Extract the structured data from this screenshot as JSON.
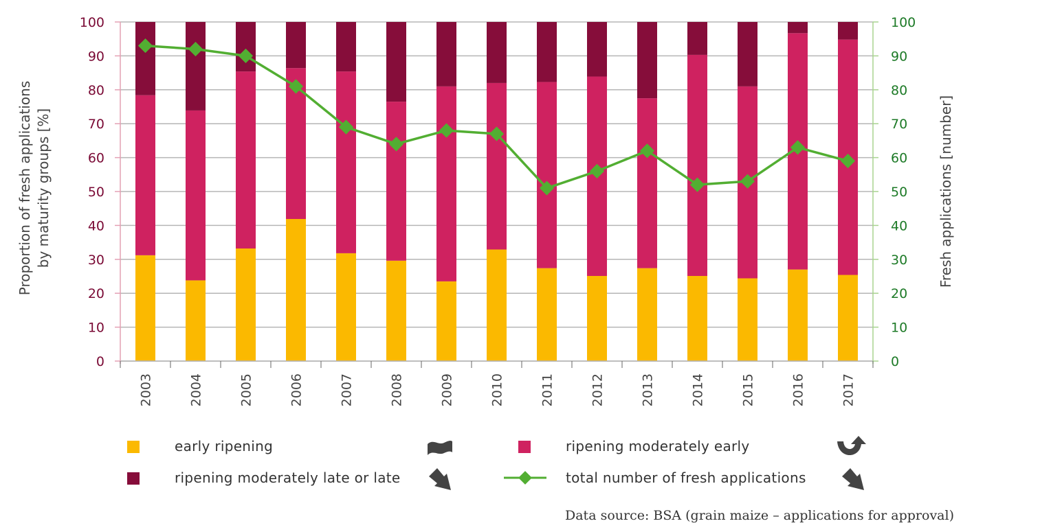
{
  "chart_data": {
    "type": "bar",
    "stacked": true,
    "title": "",
    "categories": [
      "2003",
      "2004",
      "2005",
      "2006",
      "2007",
      "2008",
      "2009",
      "2010",
      "2011",
      "2012",
      "2013",
      "2014",
      "2015",
      "2016",
      "2017"
    ],
    "series": [
      {
        "name": "early ripening",
        "color": "#fbb900",
        "axis": "left",
        "type": "bar",
        "values": [
          31.2,
          23.8,
          33.2,
          41.9,
          31.8,
          29.6,
          23.5,
          32.9,
          27.4,
          25.1,
          27.4,
          25.1,
          24.4,
          27.0,
          25.4
        ]
      },
      {
        "name": "ripening moderately early",
        "color": "#cf2260",
        "axis": "left",
        "type": "bar",
        "values": [
          47.2,
          50.1,
          52.2,
          44.5,
          53.6,
          46.9,
          57.5,
          49.1,
          54.9,
          58.8,
          50.1,
          65.2,
          56.6,
          69.7,
          69.4
        ]
      },
      {
        "name": "ripening moderately late or late",
        "color": "#860d3a",
        "axis": "left",
        "type": "bar",
        "values": [
          21.6,
          26.1,
          14.6,
          13.6,
          14.6,
          23.5,
          19.0,
          18.0,
          17.7,
          16.1,
          22.5,
          9.7,
          19.0,
          3.3,
          5.2
        ]
      },
      {
        "name": "total number of fresh applications",
        "color": "#52ae32",
        "axis": "right",
        "type": "line",
        "values": [
          93,
          92,
          90,
          81,
          69,
          64,
          68,
          67,
          51,
          56,
          62,
          52,
          53,
          63,
          59
        ]
      }
    ],
    "ylabel": "Proportion of fresh applications by maturity groups [%]",
    "ylabel_lines": [
      "Proportion of fresh applications",
      "by maturity groups [%]"
    ],
    "y2label": "Fresh applications [number]",
    "xlabel": "",
    "ylim": [
      0,
      100
    ],
    "y2lim": [
      0,
      100
    ],
    "yticks": [
      0,
      10,
      20,
      30,
      40,
      50,
      60,
      70,
      80,
      90,
      100
    ],
    "y2ticks": [
      0,
      10,
      20,
      30,
      40,
      50,
      60,
      70,
      80,
      90,
      100
    ],
    "grid": true,
    "legend_position": "bottom"
  },
  "legend": [
    {
      "label": "early ripening",
      "color": "#fbb900",
      "kind": "box",
      "trend": "tilde",
      "trend_icon": "sideways-trend-icon"
    },
    {
      "label": "ripening moderately early",
      "color": "#cf2260",
      "kind": "box",
      "trend": "u-turn-up",
      "trend_icon": "trend-reversal-up-icon"
    },
    {
      "label": "ripening moderately late or late",
      "color": "#860d3a",
      "kind": "box",
      "trend": "down",
      "trend_icon": "decreasing-trend-icon"
    },
    {
      "label": "total number of fresh applications",
      "color": "#52ae32",
      "kind": "line",
      "trend": "down",
      "trend_icon": "decreasing-trend-icon"
    }
  ],
  "source": "Data source: BSA (grain maize – applications for approval)",
  "colors": {
    "left_axis_text": "#7a0a35",
    "right_axis_text": "#1d7a27",
    "left_axis_line": "#e4a0b4",
    "right_axis_line": "#a8d38f",
    "grid": "#b5b5b5",
    "trend_icon": "#444444"
  }
}
